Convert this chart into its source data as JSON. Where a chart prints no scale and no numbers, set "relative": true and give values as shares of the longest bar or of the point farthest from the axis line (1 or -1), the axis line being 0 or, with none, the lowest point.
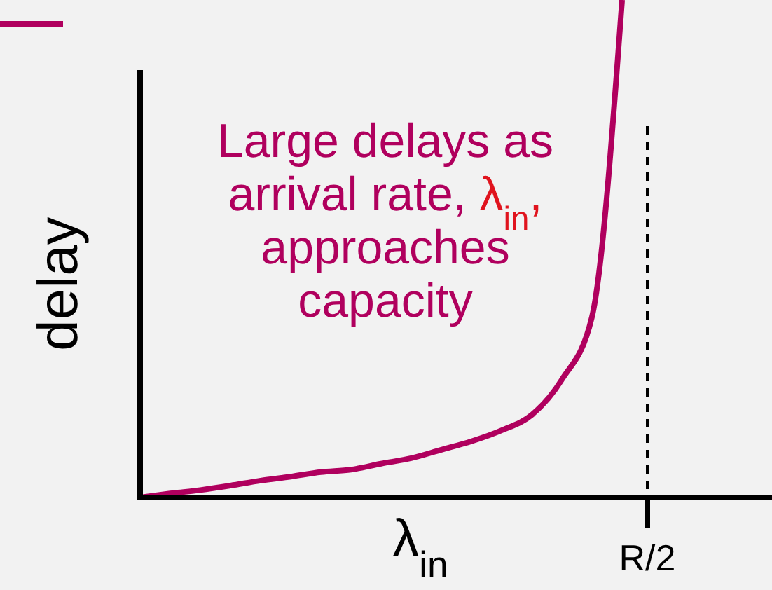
{
  "chart_data": {
    "type": "line",
    "relative": true,
    "xlabel": "λ$_{in}$",
    "ylabel": "delay",
    "categories": [
      null,
      null,
      null,
      null,
      null,
      null,
      null,
      null,
      null,
      null,
      null,
      null,
      null,
      null,
      null,
      null,
      null
    ],
    "series": [
      {
        "color": "#b0005e",
        "values": [
          0,
          0.008,
          0.015,
          0.024,
          0.034,
          0.042,
          0.051,
          0.056,
          0.068,
          0.079,
          0.096,
          0.113,
          0.135,
          0.166,
          0.237,
          0.363,
          1
        ]
      }
    ],
    "annotations": [
      "Large delays as arrival rate, λ$_{in}$, approaches capacity",
      "R/2"
    ],
    "marker": "none",
    "line_style": "solid"
  }
}
